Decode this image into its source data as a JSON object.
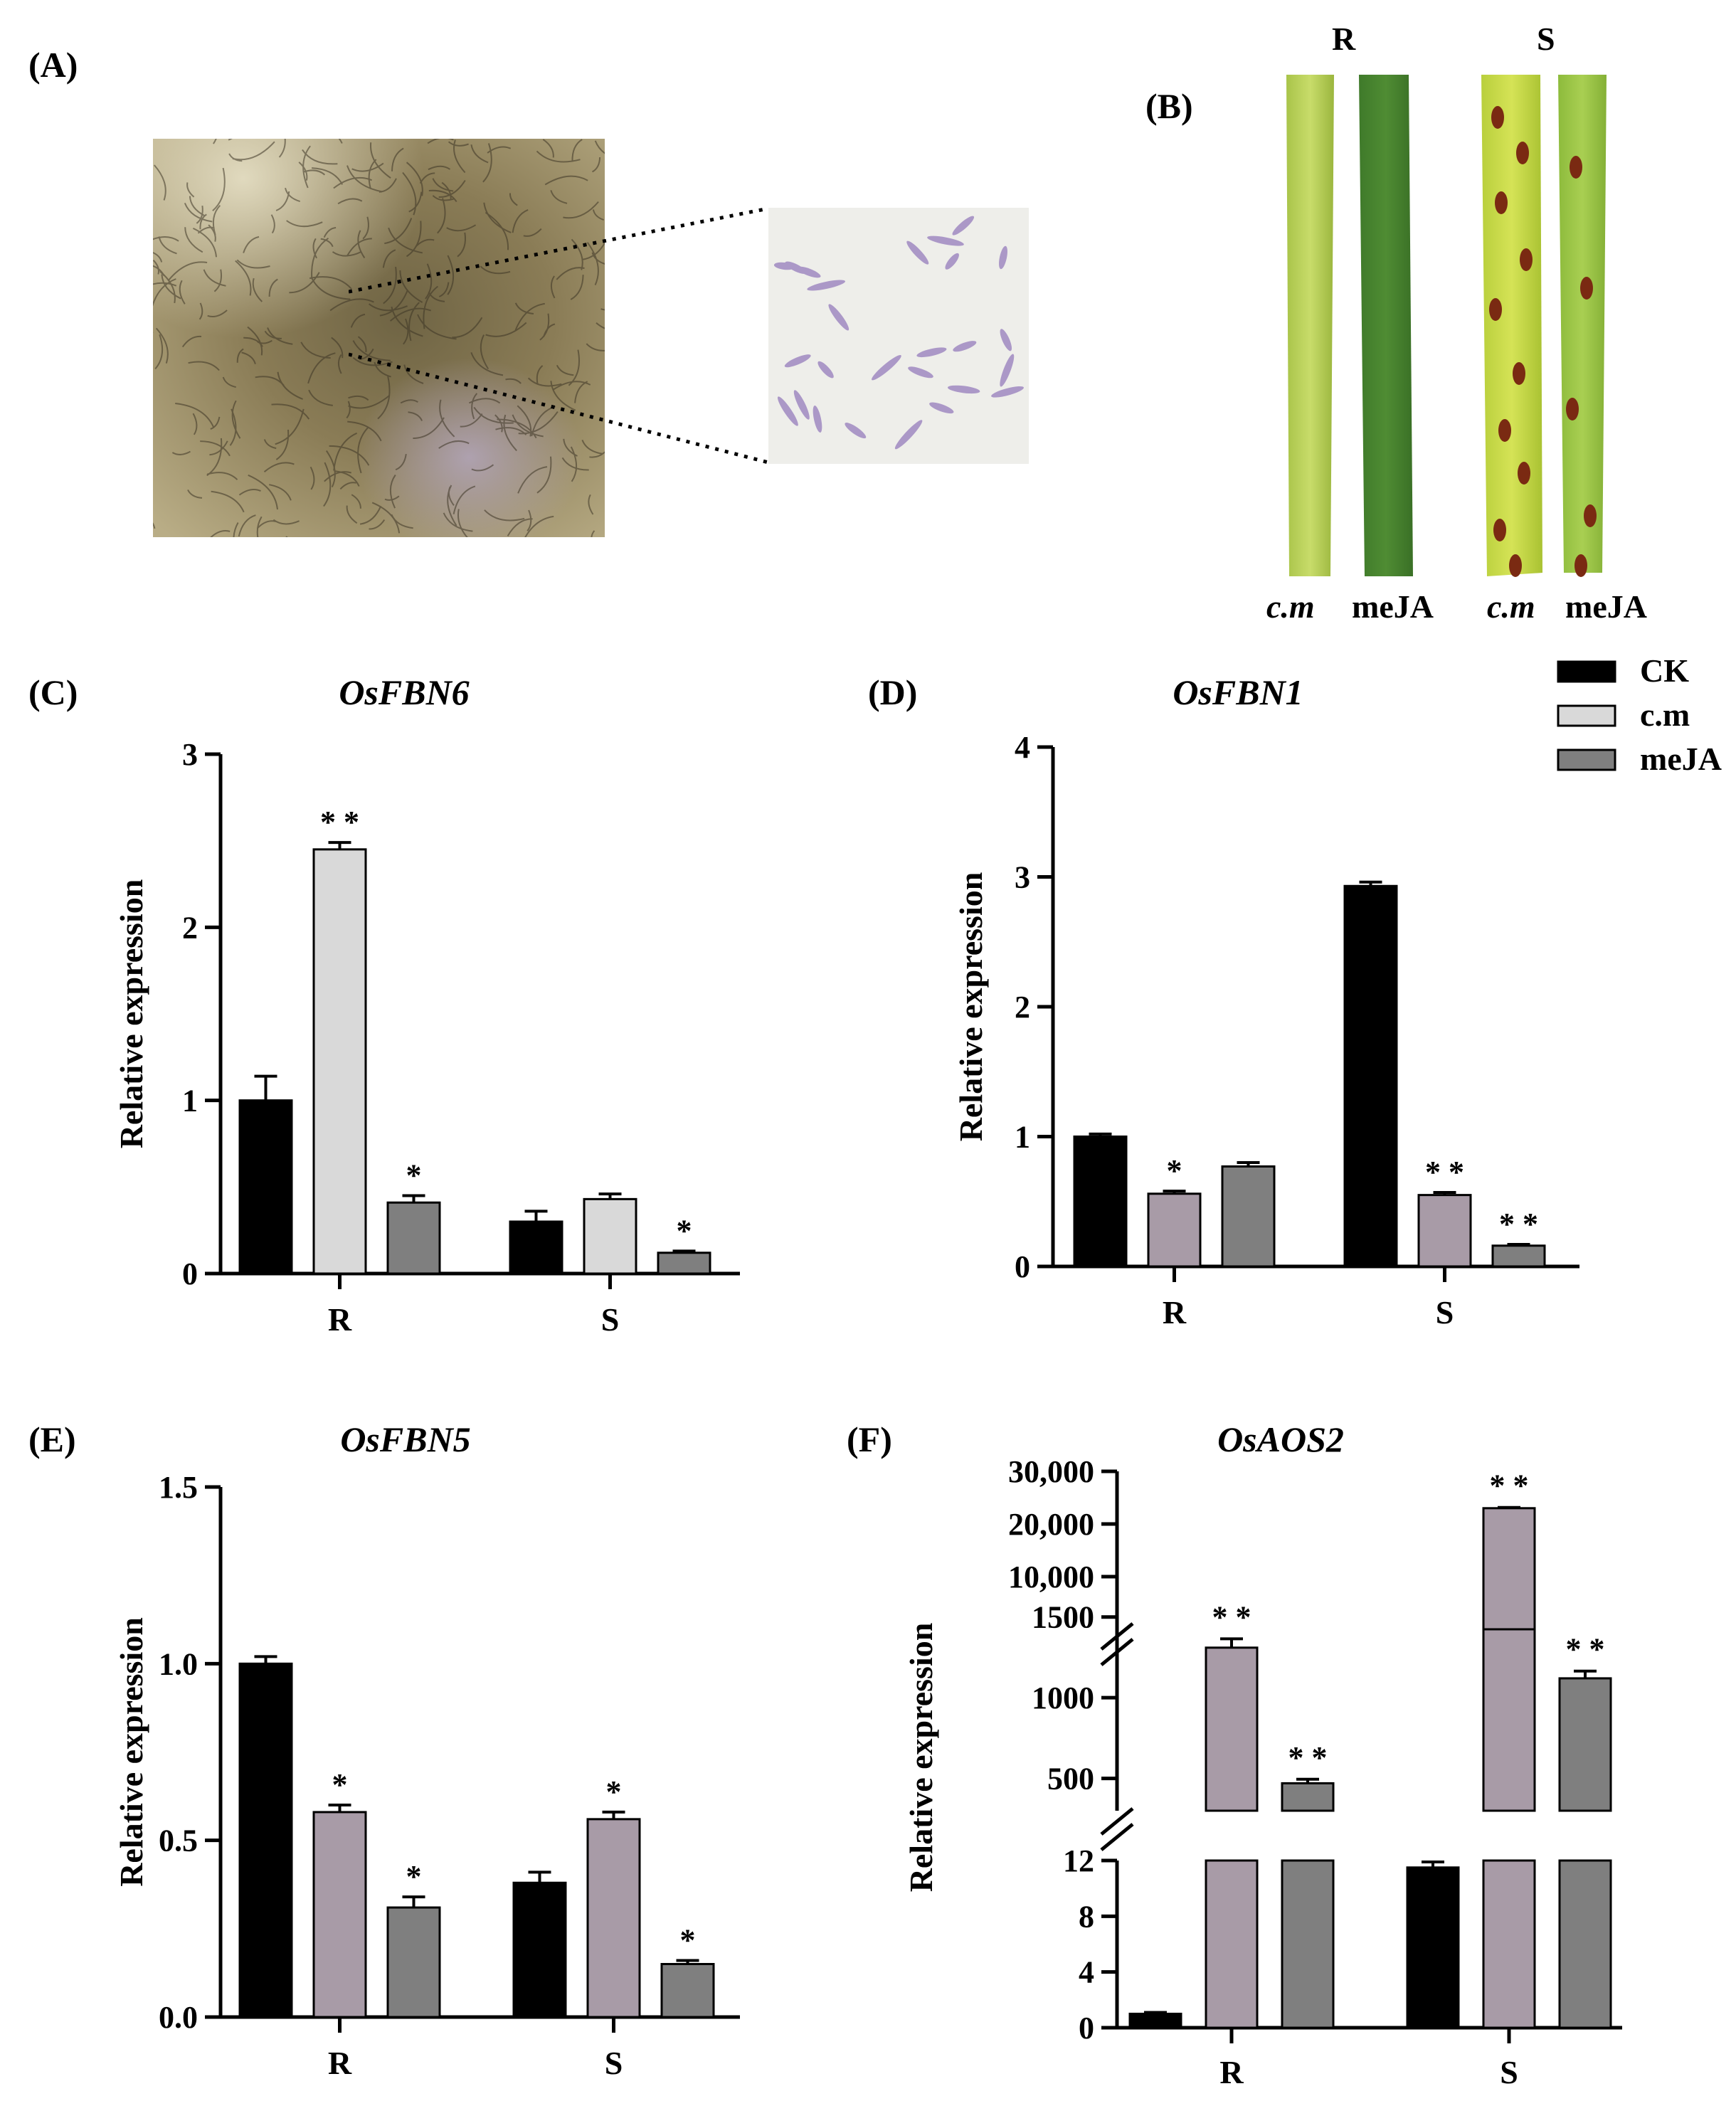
{
  "panels": {
    "A": {
      "label": "(A)"
    },
    "B": {
      "label": "(B)",
      "group_labels": [
        "R",
        "S"
      ],
      "treatment_labels": [
        "c.m",
        "meJA",
        "c.m",
        "meJA"
      ]
    }
  },
  "legend": [
    "CK",
    "c.m",
    "meJA"
  ],
  "colors": {
    "CK": "#000000",
    "cm_C": "#d9d9d9",
    "cm": "#a89ba7",
    "meJA": "#7f7f7f"
  },
  "chart_data": [
    {
      "panel": "(C)",
      "type": "bar",
      "title": "OsFBN6",
      "ylabel": "Relative expression",
      "categories": [
        "R",
        "S"
      ],
      "ylim": [
        0,
        3
      ],
      "yticks": [
        "0",
        "1",
        "2",
        "3"
      ],
      "series": [
        {
          "name": "CK",
          "values": [
            1.0,
            0.3
          ],
          "errors": [
            0.14,
            0.06
          ]
        },
        {
          "name": "c.m",
          "values": [
            2.45,
            0.43
          ],
          "errors": [
            0.04,
            0.03
          ]
        },
        {
          "name": "meJA",
          "values": [
            0.41,
            0.12
          ],
          "errors": [
            0.04,
            0.01
          ]
        }
      ],
      "annotations": [
        [
          "",
          "* *",
          "*"
        ],
        [
          "",
          "",
          "*"
        ]
      ]
    },
    {
      "panel": "(D)",
      "type": "bar",
      "title": "OsFBN1",
      "ylabel": "Relative expression",
      "categories": [
        "R",
        "S"
      ],
      "ylim": [
        0,
        4
      ],
      "yticks": [
        "0",
        "1",
        "2",
        "3",
        "4"
      ],
      "series": [
        {
          "name": "CK",
          "values": [
            1.0,
            2.93
          ],
          "errors": [
            0.02,
            0.03
          ]
        },
        {
          "name": "c.m",
          "values": [
            0.56,
            0.55
          ],
          "errors": [
            0.02,
            0.02
          ]
        },
        {
          "name": "meJA",
          "values": [
            0.77,
            0.16
          ],
          "errors": [
            0.03,
            0.01
          ]
        }
      ],
      "annotations": [
        [
          "",
          "*",
          ""
        ],
        [
          "",
          "* *",
          "* *"
        ]
      ]
    },
    {
      "panel": "(E)",
      "type": "bar",
      "title": "OsFBN5",
      "ylabel": "Relative expression",
      "categories": [
        "R",
        "S"
      ],
      "ylim": [
        0,
        1.5
      ],
      "yticks": [
        "0.0",
        "0.5",
        "1.0",
        "1.5"
      ],
      "series": [
        {
          "name": "CK",
          "values": [
            1.0,
            0.38
          ],
          "errors": [
            0.02,
            0.03
          ]
        },
        {
          "name": "c.m",
          "values": [
            0.58,
            0.56
          ],
          "errors": [
            0.02,
            0.02
          ]
        },
        {
          "name": "meJA",
          "values": [
            0.31,
            0.15
          ],
          "errors": [
            0.03,
            0.01
          ]
        }
      ],
      "annotations": [
        [
          "",
          "*",
          "*"
        ],
        [
          "",
          "*",
          "*"
        ]
      ]
    },
    {
      "panel": "(F)",
      "type": "bar",
      "title": "OsAOS2",
      "ylabel": "Relative expression",
      "categories": [
        "R",
        "S"
      ],
      "broken_axis": [
        {
          "range": [
            0,
            12
          ],
          "ticks": [
            "0",
            "4",
            "8",
            "12"
          ]
        },
        {
          "range": [
            300,
            1600
          ],
          "ticks": [
            "500",
            "1000",
            "1500"
          ]
        },
        {
          "range": [
            0,
            30000
          ],
          "ticks": [
            "10,000",
            "20,000",
            "30,000"
          ]
        }
      ],
      "series": [
        {
          "name": "CK",
          "values": [
            1.0,
            11.5
          ],
          "errors": [
            0.1,
            0.4
          ]
        },
        {
          "name": "c.m",
          "values": [
            1310,
            23000
          ],
          "errors": [
            55,
            150
          ]
        },
        {
          "name": "meJA",
          "values": [
            470,
            1120
          ],
          "errors": [
            25,
            45
          ]
        }
      ],
      "annotations": [
        [
          "",
          "* *",
          "* *"
        ],
        [
          "",
          "* *",
          "* *"
        ]
      ]
    }
  ]
}
